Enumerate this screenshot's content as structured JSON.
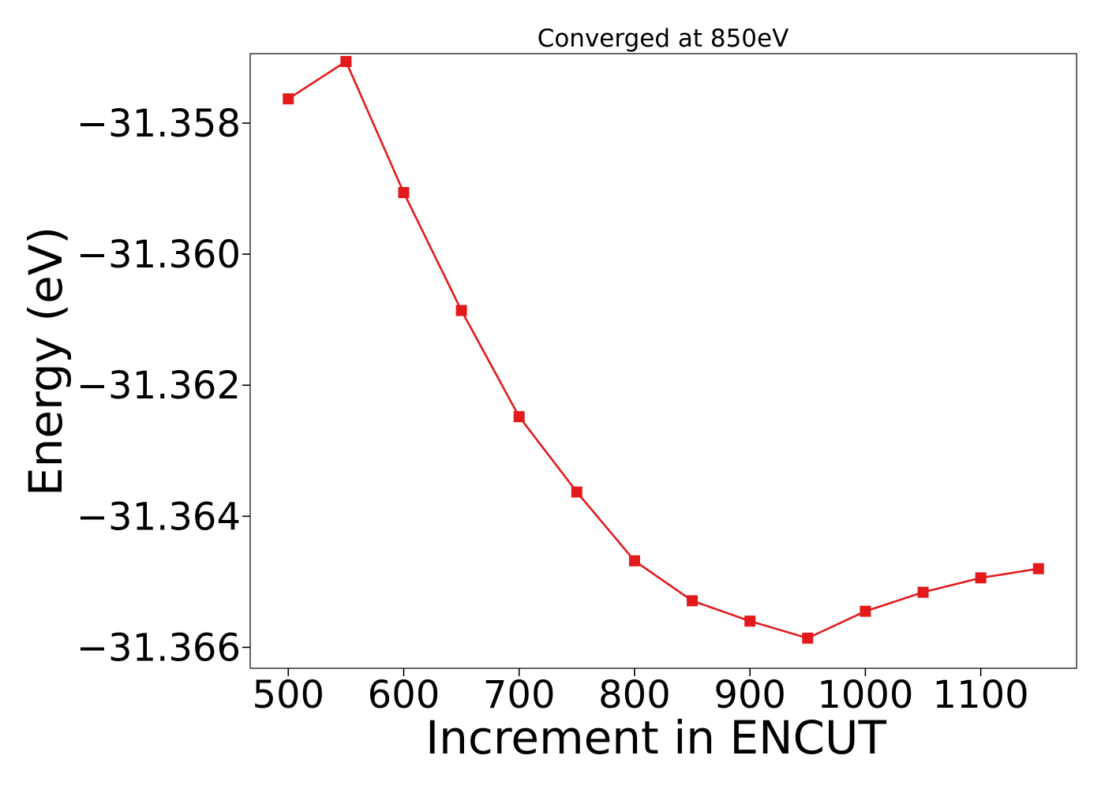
{
  "chart_data": {
    "type": "line",
    "title": "Converged at 850eV",
    "xlabel": "Increment in ENCUT",
    "ylabel": "Energy (eV)",
    "xlim": [
      467,
      1183
    ],
    "ylim": [
      -31.36632,
      -31.35694
    ],
    "x_ticks": [
      500,
      600,
      700,
      800,
      900,
      1000,
      1100
    ],
    "y_ticks": [
      -31.358,
      -31.36,
      -31.362,
      -31.364,
      -31.366
    ],
    "y_tick_labels": [
      "−31.358",
      "−31.360",
      "−31.362",
      "−31.364",
      "−31.366"
    ],
    "grid": false,
    "series": [
      {
        "color": "#e31a1c",
        "marker": "square",
        "points": [
          {
            "x": 500,
            "y": -31.35763
          },
          {
            "x": 550,
            "y": -31.35706
          },
          {
            "x": 600,
            "y": -31.35906
          },
          {
            "x": 650,
            "y": -31.36086
          },
          {
            "x": 700,
            "y": -31.36248
          },
          {
            "x": 750,
            "y": -31.36363
          },
          {
            "x": 800,
            "y": -31.36468
          },
          {
            "x": 850,
            "y": -31.36529
          },
          {
            "x": 900,
            "y": -31.3656
          },
          {
            "x": 950,
            "y": -31.36586
          },
          {
            "x": 1000,
            "y": -31.36545
          },
          {
            "x": 1050,
            "y": -31.36516
          },
          {
            "x": 1100,
            "y": -31.36494
          },
          {
            "x": 1150,
            "y": -31.3648
          }
        ]
      }
    ]
  }
}
